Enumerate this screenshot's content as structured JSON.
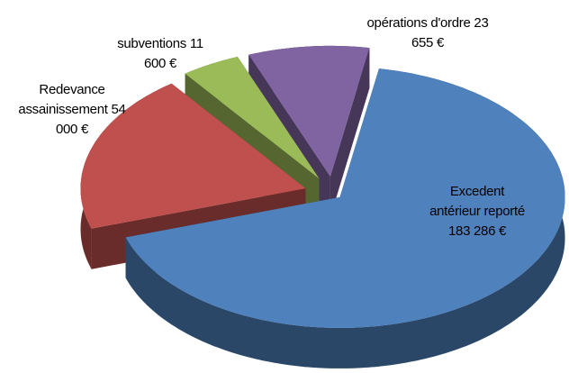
{
  "chart_data": {
    "type": "pie3d",
    "categories": [
      "Excedent antérieur reporté",
      "Redevance assainissement",
      "subventions",
      "opérations d'ordre"
    ],
    "values": [
      183286,
      54000,
      11600,
      23655
    ],
    "value_labels": [
      "183 286 €",
      "54 000 €",
      "11 600 €",
      "23 655 €"
    ],
    "colors": [
      "#4f81bd",
      "#c0504d",
      "#9bbb59",
      "#8064a2"
    ],
    "exploded": true
  }
}
